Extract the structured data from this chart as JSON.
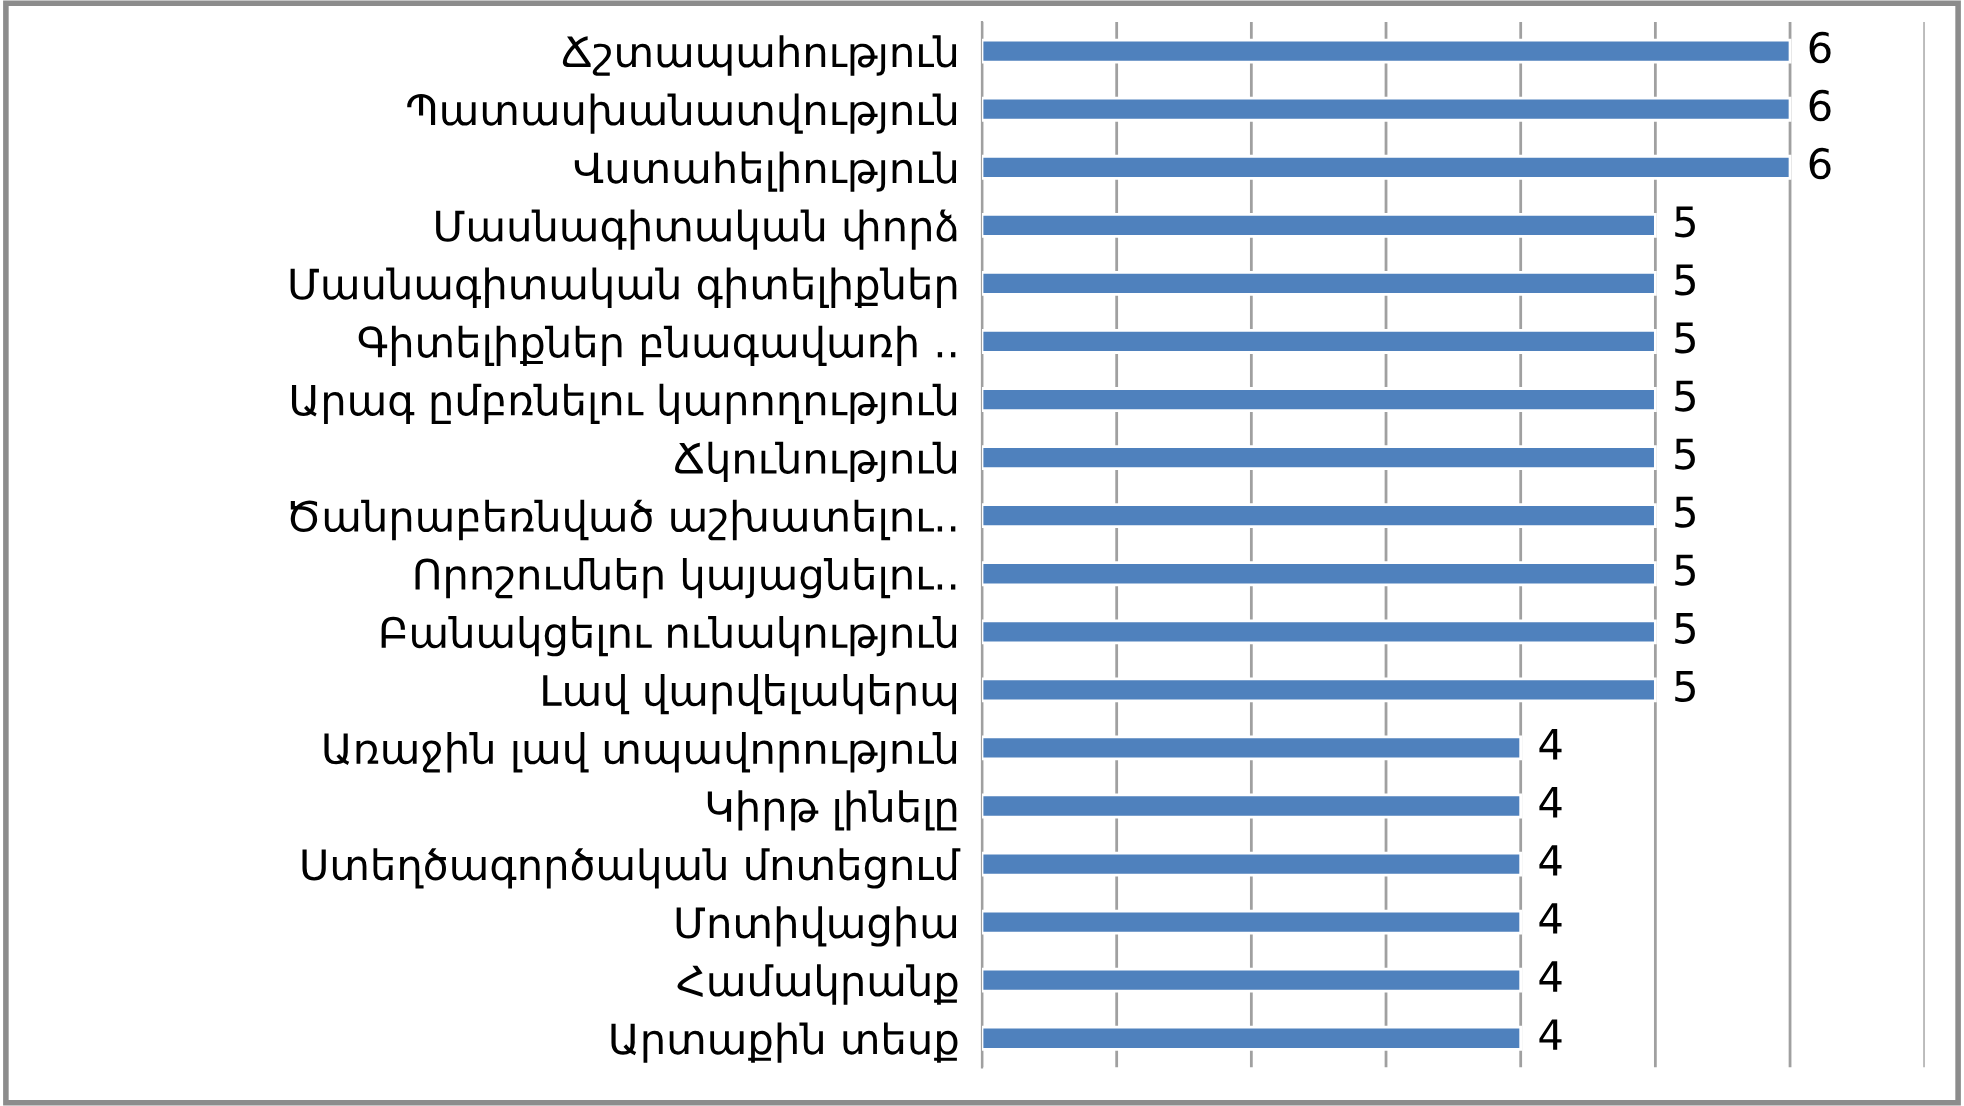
{
  "chart_data": {
    "type": "bar",
    "orientation": "horizontal",
    "categories": [
      "Ճշտապահություն",
      "Պատասխանատվություն",
      "Վստահելիություն",
      "Մասնագիտական փորձ",
      "Մասնագիտական գիտելիքներ",
      "Գիտելիքներ բնագավառի ..",
      "Արագ ըմբռնելու կարողություն",
      "Ճկունություն",
      "Ծանրաբեռնված աշխատելու..",
      "Որոշումներ կայացնելու..",
      "Բանակցելու ունակություն",
      "Լավ վարվելակերպ",
      "Առաջին լավ տպավորություն",
      "Կիրթ լինելը",
      "Ստեղծագործական մոտեցում",
      "Մոտիվացիա",
      "Համակրանք",
      "Արտաքին տեսք"
    ],
    "values": [
      6,
      6,
      6,
      5,
      5,
      5,
      5,
      5,
      5,
      5,
      5,
      5,
      4,
      4,
      4,
      4,
      4,
      4
    ],
    "color": "#4f81bd",
    "xlim": [
      0,
      7
    ],
    "xticks": [
      {
        "value": 0,
        "label": null
      },
      {
        "value": 1,
        "label": null
      },
      {
        "value": 2,
        "label": null
      },
      {
        "value": 3,
        "label": null
      },
      {
        "value": 4,
        "label": null
      },
      {
        "value": 5,
        "label": null
      },
      {
        "value": 6,
        "label": null
      },
      {
        "value": 7,
        "label": null
      }
    ],
    "tick_labels": "y",
    "grid": "x",
    "data_labels": true
  }
}
